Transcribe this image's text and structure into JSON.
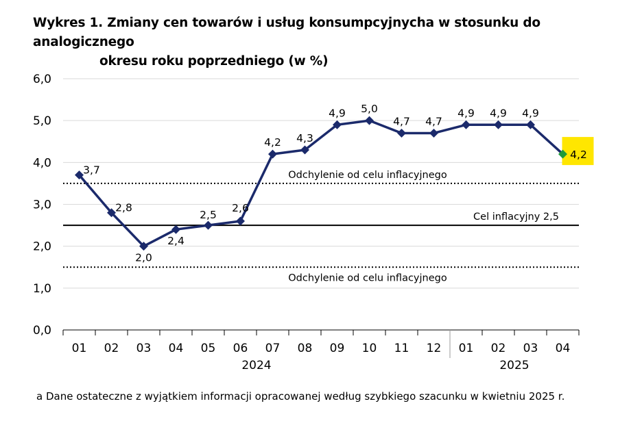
{
  "title_line1": "Wykres 1. Zmiany cen towarów i usług konsumpcyjnycha w stosunku do analogicznego",
  "title_line2": "okresu roku poprzedniego (w %)",
  "footnote": "a Dane ostateczne z wyjątkiem informacji opracowanej według szybkiego szacunku w kwietniu 2025 r.",
  "colors": {
    "line": "#1b2a6b",
    "highlight_marker": "#1f9a3a",
    "highlight_bg": "#ffe600",
    "grid": "#d9d9d9"
  },
  "chart_data": {
    "type": "line",
    "title": "Wykres 1. Zmiany cen towarów i usług konsumpcyjnycha w stosunku do analogicznego okresu roku poprzedniego (w %)",
    "categories": [
      "01",
      "02",
      "03",
      "04",
      "05",
      "06",
      "07",
      "08",
      "09",
      "10",
      "11",
      "12",
      "01",
      "02",
      "03",
      "04"
    ],
    "year_groups": [
      {
        "label": "2024",
        "start": 0,
        "end": 11
      },
      {
        "label": "2025",
        "start": 12,
        "end": 15
      }
    ],
    "series": [
      {
        "values": [
          3.7,
          2.8,
          2.0,
          2.4,
          2.5,
          2.6,
          4.2,
          4.3,
          4.9,
          5.0,
          4.7,
          4.7,
          4.9,
          4.9,
          4.9,
          4.2
        ]
      }
    ],
    "data_labels": [
      "3,7",
      "2,8",
      "2,0",
      "2,4",
      "2,5",
      "2,6",
      "4,2",
      "4,3",
      "4,9",
      "5,0",
      "4,7",
      "4,7",
      "4,9",
      "4,9",
      "4,9",
      "4,2"
    ],
    "highlight_index": 15,
    "ylim": [
      0,
      6
    ],
    "yticks": [
      0,
      1,
      2,
      3,
      4,
      5,
      6
    ],
    "ytick_labels": [
      "0,0",
      "1,0",
      "2,0",
      "3,0",
      "4,0",
      "5,0",
      "6,0"
    ],
    "grid": true,
    "reference_lines": [
      {
        "value": 3.5,
        "style": "dotted",
        "label": "Odchylenie od celu inflacyjnego"
      },
      {
        "value": 2.5,
        "style": "solid",
        "label": "Cel inflacyjny 2,5"
      },
      {
        "value": 1.5,
        "style": "dotted",
        "label": "Odchylenie od celu inflacyjnego"
      }
    ]
  }
}
